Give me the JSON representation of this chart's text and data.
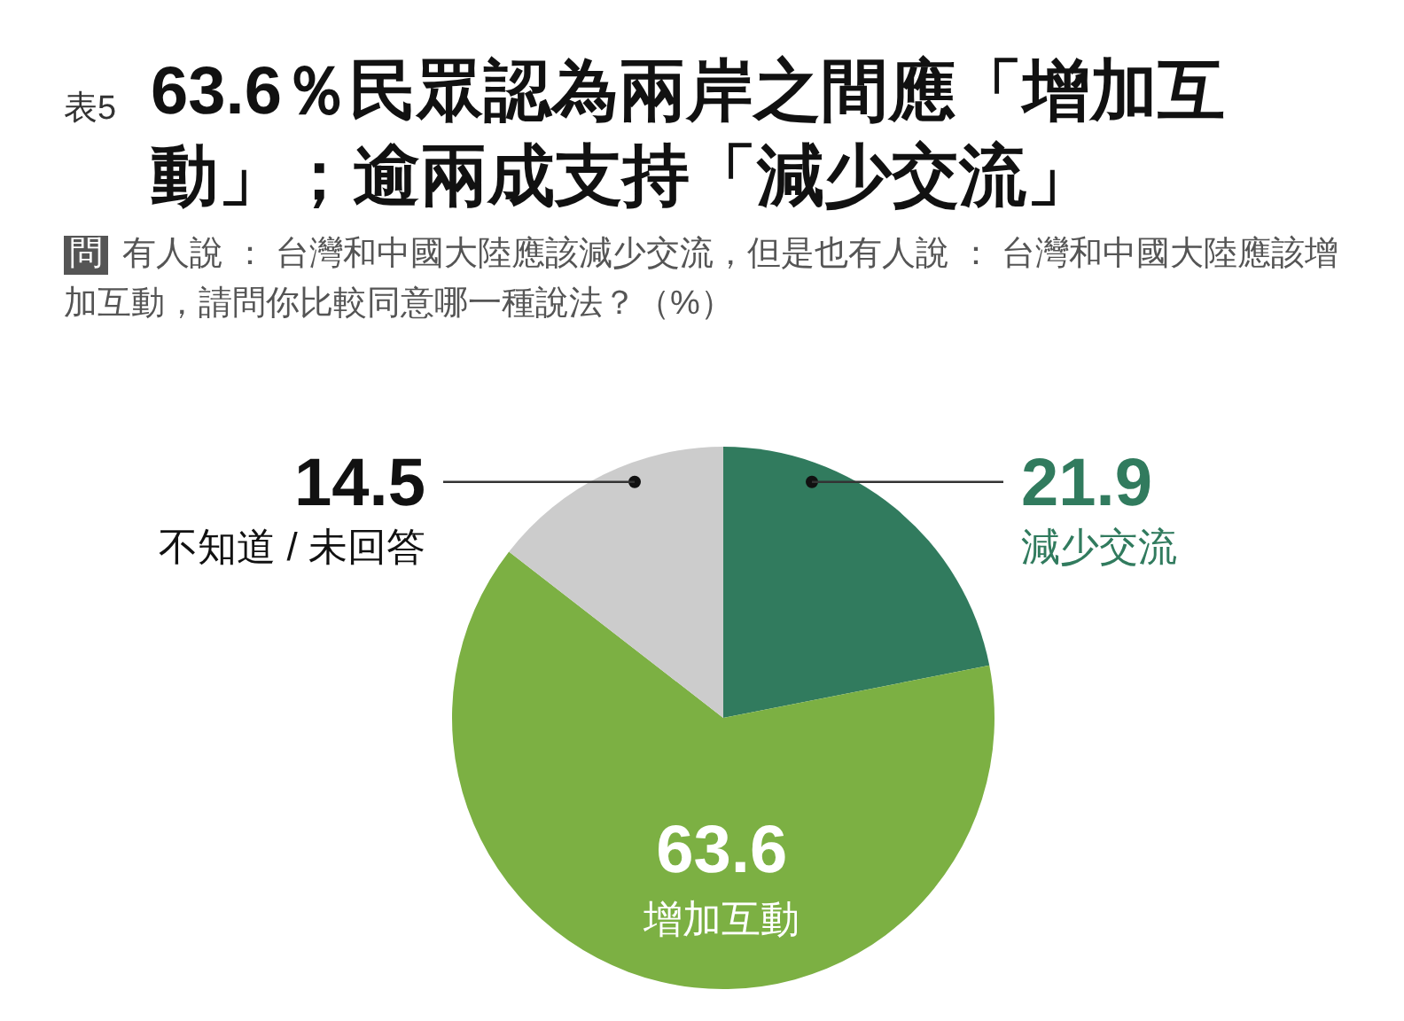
{
  "chart_data": {
    "type": "pie",
    "title": "63.6％民眾認為兩岸之間應「增加互動」；逾兩成支持「減少交流」",
    "subtitle": "有人說 ： 台灣和中國大陸應該減少交流，但是也有人說 ： 台灣和中國大陸應該增加互動，請問你比較同意哪一種說法？（%）",
    "annotations": [
      "表5",
      "問"
    ],
    "categories": [
      "減少交流",
      "增加互動",
      "不知道 / 未回答"
    ],
    "values": [
      21.9,
      63.6,
      14.5
    ],
    "colors": [
      "#317b5e",
      "#7cb043",
      "#cccccc"
    ],
    "data_labels": true
  }
}
